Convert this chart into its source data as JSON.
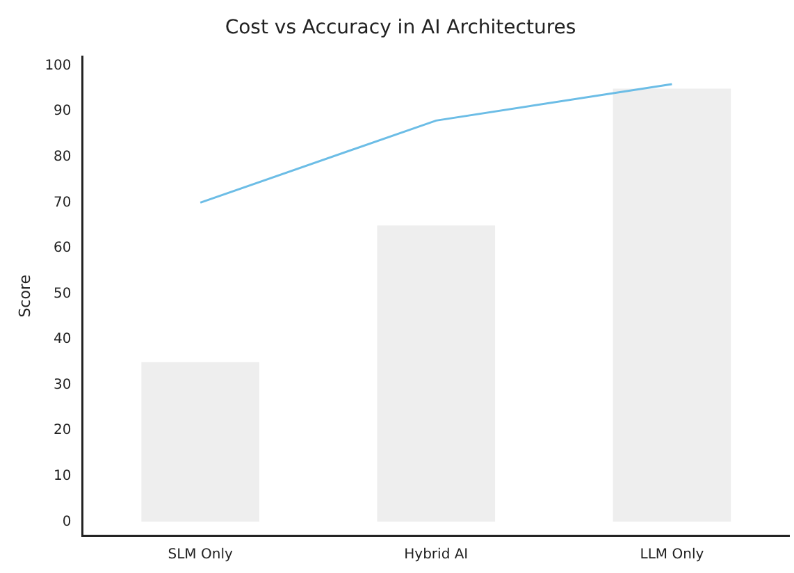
{
  "chart_data": {
    "type": "bar",
    "title": "Cost vs Accuracy in AI Architectures",
    "ylabel": "Score",
    "categories": [
      "SLM Only",
      "Hybrid AI",
      "LLM Only"
    ],
    "series": [
      {
        "color": "#eeeeee",
        "values": [
          35,
          65,
          95
        ]
      },
      {
        "type": "line",
        "color": "#6cbde6",
        "values": [
          70,
          88,
          96
        ]
      }
    ],
    "ylim": [
      -3,
      102
    ],
    "yticks": [
      0,
      10,
      20,
      30,
      40,
      50,
      60,
      70,
      80,
      90,
      100
    ],
    "grid": false,
    "legend": false,
    "marker": "none"
  }
}
